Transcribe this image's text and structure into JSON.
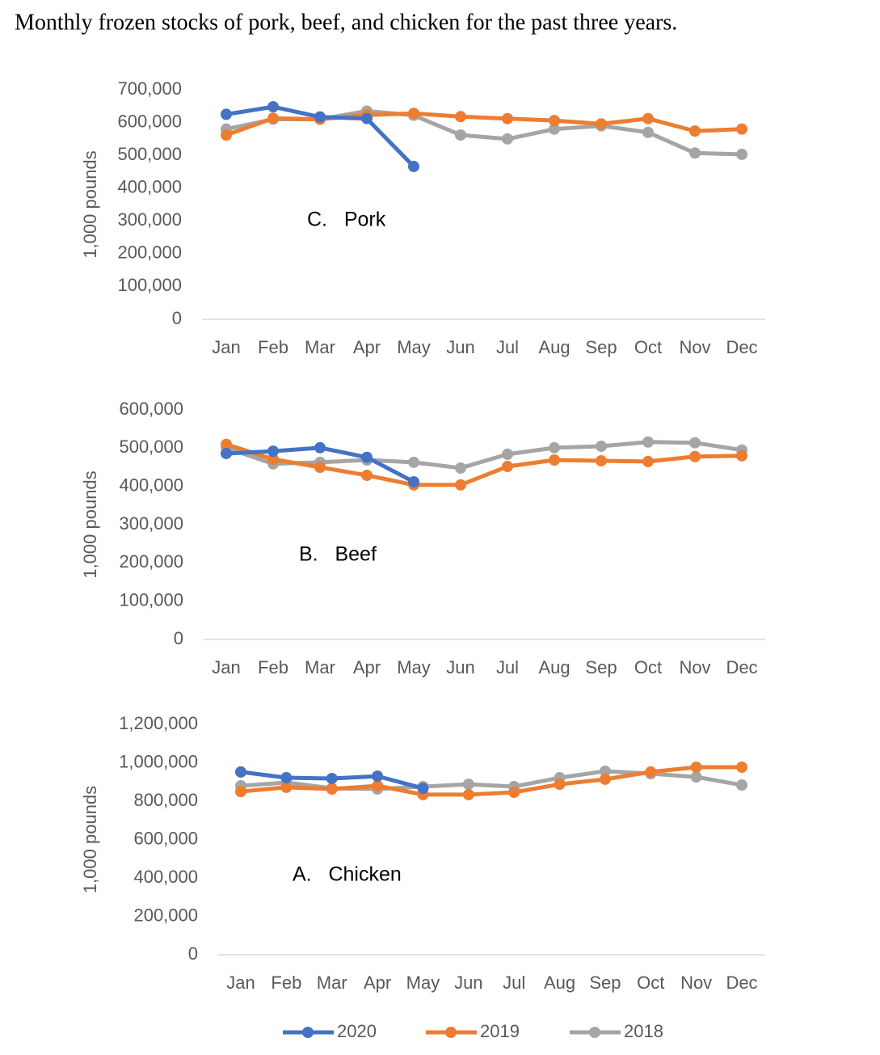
{
  "title": "Monthly frozen stocks of pork, beef, and chicken for the past three years.",
  "legend": {
    "series": [
      {
        "name": "2020",
        "color": "#4472c4"
      },
      {
        "name": "2019",
        "color": "#ed7d31"
      },
      {
        "name": "2018",
        "color": "#a5a5a5"
      }
    ]
  },
  "chart_data": [
    {
      "type": "line",
      "annotation": "C.   Pork",
      "y_label": "1,000 pounds",
      "categories": [
        "Jan",
        "Feb",
        "Mar",
        "Apr",
        "May",
        "Jun",
        "Jul",
        "Aug",
        "Sep",
        "Oct",
        "Nov",
        "Dec"
      ],
      "series": [
        {
          "values": [
            625000,
            648000,
            617000,
            612000,
            466000,
            null,
            null,
            null,
            null,
            null,
            null,
            null
          ]
        },
        {
          "values": [
            562000,
            613000,
            610000,
            623000,
            628000,
            618000,
            612000,
            606000,
            596000,
            612000,
            574000,
            580000
          ]
        },
        {
          "values": [
            580000,
            610000,
            610000,
            635000,
            622000,
            562000,
            550000,
            580000,
            590000,
            570000,
            507000,
            503000
          ]
        }
      ],
      "ylim": [
        0,
        700000
      ],
      "yticks": [
        0,
        {
          "value": 100000,
          "label": "100,000"
        },
        {
          "value": 200000,
          "label": "200,000"
        },
        {
          "value": 300000,
          "label": "300,000"
        },
        {
          "value": 400000,
          "label": "400,000"
        },
        {
          "value": 500000,
          "label": "500,000"
        },
        {
          "value": 600000,
          "label": "600,000"
        },
        {
          "value": 700000,
          "label": "700,000"
        }
      ],
      "grid": false
    },
    {
      "type": "line",
      "annotation": "B.   Beef",
      "y_label": "1,000 pounds",
      "categories": [
        "Jan",
        "Feb",
        "Mar",
        "Apr",
        "May",
        "Jun",
        "Jul",
        "Aug",
        "Sep",
        "Oct",
        "Nov",
        "Dec"
      ],
      "series": [
        {
          "values": [
            486000,
            492000,
            501000,
            476000,
            412000,
            null,
            null,
            null,
            null,
            null,
            null,
            null
          ]
        },
        {
          "values": [
            510000,
            471000,
            450000,
            429000,
            404000,
            404000,
            452000,
            469000,
            467000,
            465000,
            478000,
            480000
          ]
        },
        {
          "values": [
            501000,
            459000,
            463000,
            469000,
            463000,
            448000,
            484000,
            501000,
            505000,
            516000,
            514000,
            495000
          ]
        }
      ],
      "ylim": [
        0,
        600000
      ],
      "yticks": [
        0,
        {
          "value": 100000,
          "label": "100,000"
        },
        {
          "value": 200000,
          "label": "200,000"
        },
        {
          "value": 300000,
          "label": "300,000"
        },
        {
          "value": 400000,
          "label": "400,000"
        },
        {
          "value": 500000,
          "label": "500,000"
        },
        {
          "value": 600000,
          "label": "600,000"
        }
      ],
      "grid": false
    },
    {
      "type": "line",
      "annotation": "A.   Chicken",
      "y_label": "1,000 pounds",
      "categories": [
        "Jan",
        "Feb",
        "Mar",
        "Apr",
        "May",
        "Jun",
        "Jul",
        "Aug",
        "Sep",
        "Oct",
        "Nov",
        "Dec"
      ],
      "series": [
        {
          "values": [
            952000,
            922000,
            918000,
            930000,
            867000,
            null,
            null,
            null,
            null,
            null,
            null,
            null
          ]
        },
        {
          "values": [
            850000,
            872000,
            863000,
            880000,
            834000,
            834000,
            846000,
            888000,
            914000,
            952000,
            977000,
            977000
          ]
        },
        {
          "values": [
            880000,
            897000,
            867000,
            863000,
            876000,
            888000,
            876000,
            922000,
            956000,
            943000,
            926000,
            884000
          ]
        }
      ],
      "ylim": [
        0,
        1200000
      ],
      "yticks": [
        0,
        {
          "value": 200000,
          "label": "200,000"
        },
        {
          "value": 400000,
          "label": "400,000"
        },
        {
          "value": 600000,
          "label": "600,000"
        },
        {
          "value": 800000,
          "label": "800,000"
        },
        {
          "value": 1000000,
          "label": "1,000,000"
        },
        {
          "value": 1200000,
          "label": "1,200,000"
        }
      ],
      "grid": false
    }
  ]
}
